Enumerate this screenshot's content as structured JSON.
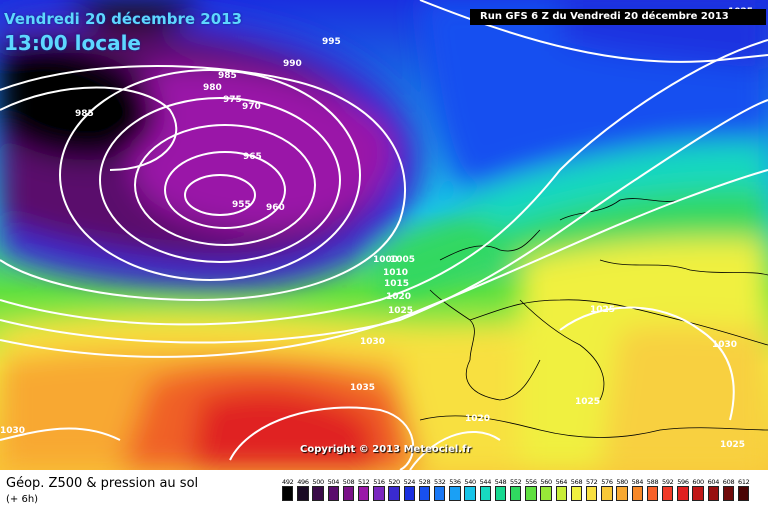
{
  "header": {
    "date_title": "Vendredi 20 décembre 2013",
    "time_title": "13:00 locale",
    "run_info": "Run GFS 6 Z du Vendredi 20 décembre 2013"
  },
  "map": {
    "copyright": "Copyright © 2013 Meteociel.fr",
    "isobar_labels": [
      "995",
      "990",
      "985",
      "980",
      "975",
      "970",
      "985",
      "965",
      "955",
      "960",
      "1000",
      "1005",
      "1010",
      "1015",
      "1020",
      "1025",
      "1030",
      "1035",
      "1030",
      "1020",
      "1025",
      "1025",
      "1030",
      "1025",
      "1025",
      "995"
    ],
    "isobar_color": "#ffffff",
    "coastline_color": "#000000"
  },
  "footer": {
    "legend_main": "Géop. Z500 & pression au sol",
    "legend_sub": "(+ 6h)",
    "scale": [
      {
        "label": "492",
        "color": "#000000"
      },
      {
        "label": "496",
        "color": "#1a0a24"
      },
      {
        "label": "500",
        "color": "#3a0a48"
      },
      {
        "label": "504",
        "color": "#5a0c6c"
      },
      {
        "label": "508",
        "color": "#7a1088"
      },
      {
        "label": "512",
        "color": "#9a18a8"
      },
      {
        "label": "516",
        "color": "#7a28c0"
      },
      {
        "label": "520",
        "color": "#3a2ad0"
      },
      {
        "label": "524",
        "color": "#1a30e0"
      },
      {
        "label": "528",
        "color": "#1850f0"
      },
      {
        "label": "532",
        "color": "#1a78f5"
      },
      {
        "label": "536",
        "color": "#1aa0f5"
      },
      {
        "label": "540",
        "color": "#18c4e8"
      },
      {
        "label": "544",
        "color": "#18d8c0"
      },
      {
        "label": "548",
        "color": "#18d890"
      },
      {
        "label": "552",
        "color": "#30d860"
      },
      {
        "label": "556",
        "color": "#60e040"
      },
      {
        "label": "560",
        "color": "#98e838"
      },
      {
        "label": "564",
        "color": "#c8ee38"
      },
      {
        "label": "568",
        "color": "#f0f040"
      },
      {
        "label": "572",
        "color": "#f8e040"
      },
      {
        "label": "576",
        "color": "#f8c838"
      },
      {
        "label": "580",
        "color": "#f8a830"
      },
      {
        "label": "584",
        "color": "#f88828"
      },
      {
        "label": "588",
        "color": "#f86028"
      },
      {
        "label": "592",
        "color": "#f03a28"
      },
      {
        "label": "596",
        "color": "#e02020"
      },
      {
        "label": "600",
        "color": "#c01818"
      },
      {
        "label": "604",
        "color": "#981010"
      },
      {
        "label": "608",
        "color": "#700a0a"
      },
      {
        "label": "612",
        "color": "#4a0404"
      }
    ]
  }
}
